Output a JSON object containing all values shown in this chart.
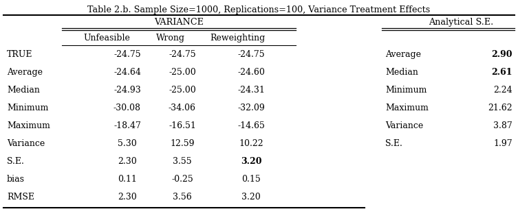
{
  "title": "Table 2.b. Sample Size=1000, Replications=100, Variance Treatment Effects",
  "variance_header": "VARIANCE",
  "analytical_header": "Analytical S.E.",
  "col_headers": [
    "Unfeasible",
    "Wrong",
    "Reweighting"
  ],
  "row_labels": [
    "TRUE",
    "Average",
    "Median",
    "Minimum",
    "Maximum",
    "Variance",
    "S.E.",
    "bias",
    "RMSE"
  ],
  "variance_data": [
    [
      "-24.75",
      "-24.75",
      "-24.75"
    ],
    [
      "-24.64",
      "-25.00",
      "-24.60"
    ],
    [
      "-24.93",
      "-25.00",
      "-24.31"
    ],
    [
      "-30.08",
      "-34.06",
      "-32.09"
    ],
    [
      "-18.47",
      "-16.51",
      "-14.65"
    ],
    [
      "5.30",
      "12.59",
      "10.22"
    ],
    [
      "2.30",
      "3.55",
      "3.20"
    ],
    [
      "0.11",
      "-0.25",
      "0.15"
    ],
    [
      "2.30",
      "3.56",
      "3.20"
    ]
  ],
  "bold_cells": [
    [
      6,
      2
    ]
  ],
  "analytical_labels": [
    "Average",
    "Median",
    "Minimum",
    "Maximum",
    "Variance",
    "S.E."
  ],
  "analytical_values": [
    "2.90",
    "2.61",
    "2.24",
    "21.62",
    "3.87",
    "1.97"
  ],
  "analytical_bold_vals": [
    0,
    1
  ],
  "bg_color": "#ffffff",
  "text_color": "#000000",
  "font_size": 9.0
}
